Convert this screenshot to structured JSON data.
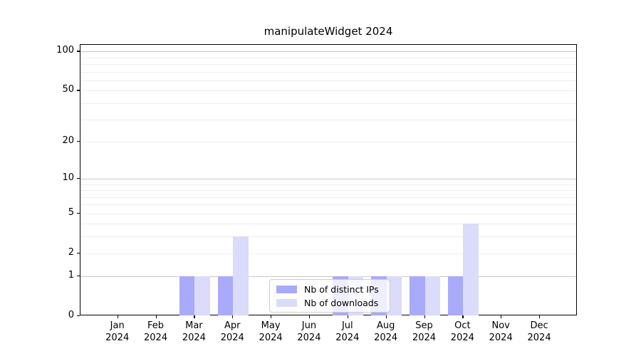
{
  "chart_data": {
    "type": "bar",
    "title": "manipulateWidget 2024",
    "categories": [
      "Jan",
      "Feb",
      "Mar",
      "Apr",
      "May",
      "Jun",
      "Jul",
      "Aug",
      "Sep",
      "Oct",
      "Nov",
      "Dec"
    ],
    "category_sublabel": "2024",
    "series": [
      {
        "name": "Nb of distinct IPs",
        "color": "#a9aafa",
        "values": [
          0,
          0,
          1,
          1,
          0,
          0,
          1,
          1,
          1,
          1,
          0,
          0
        ]
      },
      {
        "name": "Nb of downloads",
        "color": "#dbdbfa",
        "values": [
          0,
          0,
          1,
          3,
          0,
          0,
          1,
          1,
          1,
          4,
          0,
          0
        ]
      }
    ],
    "xlabel": "",
    "ylabel": "",
    "y_axis": {
      "scale": "log1p",
      "ylim": [
        0,
        113
      ],
      "tick_values": [
        0,
        1,
        2,
        5,
        10,
        20,
        50,
        100
      ],
      "major_gridlines": [
        1,
        10,
        100
      ],
      "minor_gridlines": [
        2,
        3,
        4,
        5,
        6,
        7,
        8,
        9,
        20,
        30,
        40,
        50,
        60,
        70,
        80,
        90
      ]
    },
    "legend_position": "lower center (inside plot)",
    "grid": "on",
    "colors": {
      "background": "#ffffff",
      "major_grid": "#c8c8c8",
      "minor_grid": "#eeeeee",
      "axis_line": "#000000",
      "text": "#000000",
      "legend_border": "#cccccc"
    }
  }
}
